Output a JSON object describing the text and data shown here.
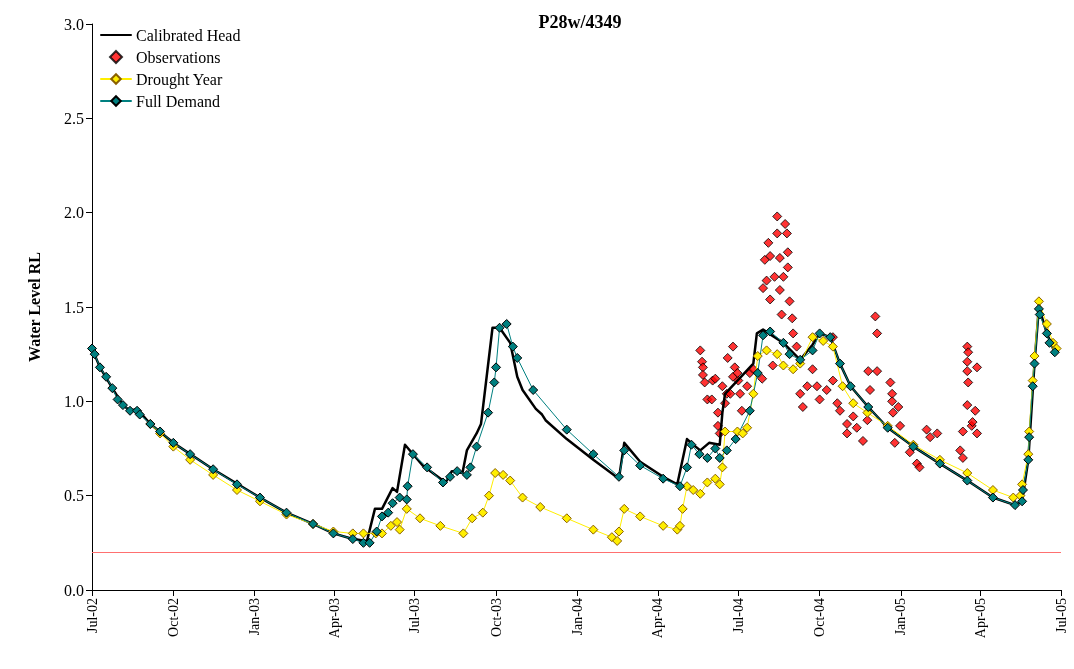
{
  "chart_data": {
    "type": "line",
    "title": "P28w/4349",
    "ylabel": "Water Level RL",
    "xlim": [
      "2002-07-01",
      "2005-07-01"
    ],
    "xticks": [
      {
        "value": "2002-07-01",
        "label": "Jul-02"
      },
      {
        "value": "2002-10-01",
        "label": "Oct-02"
      },
      {
        "value": "2003-01-01",
        "label": "Jan-03"
      },
      {
        "value": "2003-04-01",
        "label": "Apr-03"
      },
      {
        "value": "2003-07-01",
        "label": "Jul-03"
      },
      {
        "value": "2003-10-01",
        "label": "Oct-03"
      },
      {
        "value": "2004-01-01",
        "label": "Jan-04"
      },
      {
        "value": "2004-04-01",
        "label": "Apr-04"
      },
      {
        "value": "2004-07-01",
        "label": "Jul-04"
      },
      {
        "value": "2004-10-01",
        "label": "Oct-04"
      },
      {
        "value": "2005-01-01",
        "label": "Jan-05"
      },
      {
        "value": "2005-04-01",
        "label": "Apr-05"
      },
      {
        "value": "2005-07-01",
        "label": "Jul-05"
      }
    ],
    "ylim": [
      0,
      3
    ],
    "yticks": [
      {
        "value": 0,
        "label": "0.0"
      },
      0.5,
      {
        "value": 1,
        "label": "1.0"
      },
      1.5,
      {
        "value": 2,
        "label": "2.0"
      },
      2.5,
      {
        "value": 3,
        "label": "3.0"
      }
    ],
    "grid": false,
    "legend": "top left",
    "ref_lines": [
      {
        "axis": "y",
        "value": 0.2,
        "label": null,
        "color": "#ff7070",
        "line_style": "solid"
      }
    ],
    "series": [
      {
        "name": "Calibrated Head",
        "marker": "none",
        "line_style": "solid",
        "color": "#000000",
        "x": [
          "2002-07-01",
          "2002-07-10",
          "2002-07-24",
          "2002-08-05",
          "2002-08-13",
          "2002-08-21",
          "2002-09-05",
          "2002-10-01",
          "2002-11-15",
          "2003-01-07",
          "2003-02-06",
          "2003-03-08",
          "2003-03-31",
          "2003-04-22",
          "2003-05-08",
          "2003-05-17",
          "2003-05-25",
          "2003-06-06",
          "2003-06-11",
          "2003-06-20",
          "2003-07-10",
          "2003-08-05",
          "2003-08-12",
          "2003-08-24",
          "2003-08-29",
          "2003-09-09",
          "2003-09-14",
          "2003-09-27",
          "2003-10-05",
          "2003-10-17",
          "2003-10-25",
          "2003-10-31",
          "2003-11-15",
          "2003-11-22",
          "2003-11-26",
          "2003-12-20",
          "2004-01-19",
          "2004-02-17",
          "2004-02-23",
          "2004-03-12",
          "2004-04-07",
          "2004-04-23",
          "2004-05-04",
          "2004-05-11",
          "2004-05-19",
          "2004-05-29",
          "2004-06-10",
          "2004-06-13",
          "2004-06-16",
          "2004-07-18",
          "2004-07-22",
          "2004-07-29",
          "2004-08-21",
          "2004-09-09",
          "2004-09-23",
          "2004-10-01",
          "2004-10-13",
          "2004-10-24",
          "2004-11-05",
          "2004-11-25",
          "2004-12-17",
          "2005-01-15",
          "2005-02-14",
          "2005-03-17",
          "2005-04-15",
          "2005-05-10",
          "2005-05-18",
          "2005-05-25",
          "2005-06-01",
          "2005-06-06",
          "2005-06-15",
          "2005-06-24"
        ],
        "values": [
          1.28,
          1.18,
          1.07,
          0.98,
          0.95,
          0.96,
          0.88,
          0.78,
          0.64,
          0.49,
          0.41,
          0.35,
          0.3,
          0.27,
          0.26,
          0.43,
          0.43,
          0.54,
          0.52,
          0.77,
          0.66,
          0.57,
          0.63,
          0.62,
          0.74,
          0.83,
          0.88,
          1.39,
          1.39,
          1.31,
          1.13,
          1.06,
          0.96,
          0.93,
          0.9,
          0.8,
          0.69,
          0.59,
          0.78,
          0.68,
          0.6,
          0.56,
          0.8,
          0.77,
          0.74,
          0.78,
          0.77,
          0.94,
          1.04,
          1.2,
          1.36,
          1.38,
          1.31,
          1.22,
          1.3,
          1.36,
          1.34,
          1.2,
          1.08,
          0.97,
          0.86,
          0.76,
          0.67,
          0.58,
          0.49,
          0.45,
          0.47,
          0.69,
          1.2,
          1.5,
          1.36,
          1.26
        ]
      },
      {
        "name": "Observations",
        "type": "scatter",
        "marker": "diamond",
        "color": "#ff0000",
        "x": [
          "2004-05-19",
          "2004-05-21",
          "2004-05-22",
          "2004-05-22",
          "2004-05-24",
          "2004-05-27",
          "2004-06-01",
          "2004-06-02",
          "2004-06-05",
          "2004-06-08",
          "2004-06-08",
          "2004-06-10",
          "2004-06-13",
          "2004-06-16",
          "2004-06-18",
          "2004-06-19",
          "2004-06-22",
          "2004-06-25",
          "2004-06-27",
          "2004-06-25",
          "2004-07-01",
          "2004-06-30",
          "2004-07-03",
          "2004-07-05",
          "2004-07-11",
          "2004-07-14",
          "2004-07-18",
          "2004-07-28",
          "2004-07-29",
          "2004-08-02",
          "2004-07-31",
          "2004-08-04",
          "2004-08-06",
          "2004-08-06",
          "2004-08-09",
          "2004-08-14",
          "2004-08-14",
          "2004-08-11",
          "2004-08-17",
          "2004-08-17",
          "2004-08-19",
          "2004-08-21",
          "2004-08-23",
          "2004-08-25",
          "2004-08-26",
          "2004-08-28",
          "2004-08-26",
          "2004-08-31",
          "2004-09-01",
          "2004-09-05",
          "2004-09-09",
          "2004-09-12",
          "2004-09-17",
          "2004-09-23",
          "2004-09-28",
          "2004-10-01",
          "2004-10-09",
          "2004-10-16",
          "2004-10-16",
          "2004-10-21",
          "2004-10-24",
          "2004-11-01",
          "2004-11-01",
          "2004-11-08",
          "2004-11-12",
          "2004-11-19",
          "2004-11-24",
          "2004-11-25",
          "2004-12-03",
          "2004-12-05",
          "2004-12-05",
          "2004-11-27",
          "2004-12-20",
          "2004-12-22",
          "2004-12-22",
          "2004-12-23",
          "2004-12-29",
          "2004-12-31",
          "2004-12-25",
          "2005-01-11",
          "2005-01-19",
          "2005-01-22",
          "2005-01-30",
          "2005-02-03",
          "2005-02-11",
          "2005-03-09",
          "2005-03-12",
          "2005-03-12",
          "2005-03-17",
          "2005-03-17",
          "2005-03-18",
          "2005-03-17",
          "2005-03-17",
          "2005-03-18",
          "2005-03-28",
          "2005-03-26",
          "2005-03-22",
          "2005-03-23",
          "2005-03-28"
        ],
        "values": [
          1.27,
          1.21,
          1.18,
          1.14,
          1.1,
          1.01,
          1.01,
          1.11,
          1.12,
          0.94,
          0.87,
          0.83,
          1.08,
          0.99,
          1.04,
          1.23,
          1.04,
          1.29,
          1.18,
          1.13,
          1.11,
          1.15,
          1.04,
          0.95,
          1.08,
          1.15,
          1.17,
          1.12,
          1.6,
          1.64,
          1.75,
          1.84,
          1.77,
          1.54,
          1.19,
          1.98,
          1.89,
          1.66,
          1.76,
          1.59,
          1.46,
          1.66,
          1.94,
          1.89,
          1.79,
          1.53,
          1.71,
          1.44,
          1.36,
          1.29,
          1.04,
          0.97,
          1.08,
          1.17,
          1.08,
          1.01,
          1.06,
          1.11,
          1.34,
          0.99,
          0.95,
          0.88,
          0.83,
          0.92,
          0.86,
          0.79,
          0.9,
          1.16,
          1.45,
          1.36,
          1.16,
          1.06,
          1.1,
          1.04,
          1.0,
          0.94,
          0.97,
          0.87,
          0.78,
          0.73,
          0.67,
          0.65,
          0.85,
          0.81,
          0.83,
          0.74,
          0.7,
          0.84,
          0.98,
          1.29,
          1.26,
          1.21,
          1.16,
          1.1,
          1.18,
          0.95,
          0.87,
          0.89,
          0.83
        ]
      },
      {
        "name": "Drought Year",
        "marker": "diamond",
        "line_style": "solid",
        "color": "#ffee00",
        "x": [
          "2002-09-05",
          "2002-09-16",
          "2002-10-01",
          "2002-10-20",
          "2002-11-15",
          "2002-12-12",
          "2003-01-07",
          "2003-02-06",
          "2003-03-08",
          "2003-03-31",
          "2003-04-22",
          "2003-05-04",
          "2003-05-18",
          "2003-05-25",
          "2003-06-04",
          "2003-06-11",
          "2003-06-14",
          "2003-06-22",
          "2003-07-07",
          "2003-07-30",
          "2003-08-25",
          "2003-09-04",
          "2003-09-16",
          "2003-09-23",
          "2003-09-30",
          "2003-10-09",
          "2003-10-17",
          "2003-10-31",
          "2003-11-20",
          "2003-12-20",
          "2004-01-19",
          "2004-02-09",
          "2004-02-15",
          "2004-02-17",
          "2004-02-23",
          "2004-03-12",
          "2004-04-07",
          "2004-04-23",
          "2004-04-26",
          "2004-04-29",
          "2004-05-04",
          "2004-05-11",
          "2004-05-19",
          "2004-05-27",
          "2004-06-05",
          "2004-06-10",
          "2004-06-13",
          "2004-06-16",
          "2004-06-30",
          "2004-07-06",
          "2004-07-11",
          "2004-07-18",
          "2004-07-23",
          "2004-08-02",
          "2004-08-14",
          "2004-08-21",
          "2004-09-01",
          "2004-09-09",
          "2004-09-23",
          "2004-10-05",
          "2004-10-16",
          "2004-10-27",
          "2004-11-08",
          "2004-11-24",
          "2004-12-17",
          "2005-01-15",
          "2005-02-14",
          "2005-03-17",
          "2005-04-15",
          "2005-05-08",
          "2005-05-16",
          "2005-05-18",
          "2005-05-25",
          "2005-05-26",
          "2005-05-30",
          "2005-06-01",
          "2005-06-06",
          "2005-06-15",
          "2005-06-22",
          "2005-06-26"
        ],
        "values": [
          0.88,
          0.83,
          0.76,
          0.69,
          0.61,
          0.53,
          0.47,
          0.4,
          0.35,
          0.31,
          0.3,
          0.3,
          0.3,
          0.3,
          0.34,
          0.36,
          0.32,
          0.43,
          0.38,
          0.34,
          0.3,
          0.38,
          0.41,
          0.5,
          0.62,
          0.61,
          0.58,
          0.49,
          0.44,
          0.38,
          0.32,
          0.28,
          0.26,
          0.31,
          0.43,
          0.39,
          0.34,
          0.32,
          0.34,
          0.43,
          0.55,
          0.53,
          0.51,
          0.57,
          0.59,
          0.56,
          0.65,
          0.84,
          0.84,
          0.83,
          0.86,
          1.04,
          1.24,
          1.27,
          1.25,
          1.19,
          1.17,
          1.2,
          1.34,
          1.32,
          1.29,
          1.08,
          0.99,
          0.94,
          0.87,
          0.77,
          0.69,
          0.62,
          0.53,
          0.49,
          0.5,
          0.56,
          0.72,
          0.84,
          1.11,
          1.24,
          1.53,
          1.41,
          1.31,
          1.28
        ]
      },
      {
        "name": "Full Demand",
        "marker": "diamond",
        "line_style": "solid",
        "color": "#008080",
        "x": [
          "2002-07-01",
          "2002-07-04",
          "2002-07-10",
          "2002-07-17",
          "2002-07-24",
          "2002-07-30",
          "2002-08-05",
          "2002-08-13",
          "2002-08-21",
          "2002-08-24",
          "2002-09-05",
          "2002-09-16",
          "2002-10-01",
          "2002-10-20",
          "2002-11-15",
          "2002-12-12",
          "2003-01-07",
          "2003-02-06",
          "2003-03-08",
          "2003-03-31",
          "2003-04-22",
          "2003-05-04",
          "2003-05-11",
          "2003-05-19",
          "2003-05-25",
          "2003-06-01",
          "2003-06-06",
          "2003-06-14",
          "2003-06-22",
          "2003-06-23",
          "2003-06-29",
          "2003-07-15",
          "2003-08-02",
          "2003-08-10",
          "2003-08-18",
          "2003-08-29",
          "2003-09-02",
          "2003-09-09",
          "2003-09-22",
          "2003-09-29",
          "2003-10-01",
          "2003-10-05",
          "2003-10-13",
          "2003-10-20",
          "2003-10-25",
          "2003-11-12",
          "2003-12-20",
          "2004-01-19",
          "2004-02-17",
          "2004-02-23",
          "2004-03-12",
          "2004-04-07",
          "2004-04-26",
          "2004-05-04",
          "2004-05-09",
          "2004-05-18",
          "2004-05-27",
          "2004-06-05",
          "2004-06-10",
          "2004-06-18",
          "2004-06-28",
          "2004-07-14",
          "2004-07-23",
          "2004-07-29",
          "2004-08-06",
          "2004-08-21",
          "2004-08-28",
          "2004-09-09",
          "2004-09-23",
          "2004-10-01",
          "2004-10-13",
          "2004-10-24",
          "2004-11-05",
          "2004-11-25",
          "2004-12-17",
          "2005-01-15",
          "2005-02-14",
          "2005-03-17",
          "2005-04-15",
          "2005-05-10",
          "2005-05-18",
          "2005-05-19",
          "2005-05-25",
          "2005-05-26",
          "2005-05-30",
          "2005-06-01",
          "2005-06-06",
          "2005-06-07",
          "2005-06-15",
          "2005-06-18",
          "2005-06-24"
        ],
        "values": [
          1.28,
          1.25,
          1.18,
          1.13,
          1.07,
          1.01,
          0.98,
          0.95,
          0.95,
          0.93,
          0.88,
          0.84,
          0.78,
          0.72,
          0.64,
          0.56,
          0.49,
          0.41,
          0.35,
          0.3,
          0.27,
          0.25,
          0.25,
          0.31,
          0.39,
          0.41,
          0.46,
          0.49,
          0.48,
          0.55,
          0.72,
          0.65,
          0.57,
          0.6,
          0.63,
          0.61,
          0.65,
          0.76,
          0.94,
          1.1,
          1.18,
          1.39,
          1.41,
          1.29,
          1.23,
          1.06,
          0.85,
          0.72,
          0.6,
          0.74,
          0.66,
          0.59,
          0.55,
          0.65,
          0.77,
          0.72,
          0.7,
          0.75,
          0.7,
          0.74,
          0.8,
          0.95,
          1.15,
          1.35,
          1.37,
          1.31,
          1.25,
          1.22,
          1.27,
          1.36,
          1.34,
          1.2,
          1.08,
          0.97,
          0.86,
          0.76,
          0.67,
          0.58,
          0.49,
          0.45,
          0.47,
          0.53,
          0.69,
          0.81,
          1.08,
          1.2,
          1.49,
          1.46,
          1.36,
          1.31,
          1.26
        ]
      }
    ]
  }
}
